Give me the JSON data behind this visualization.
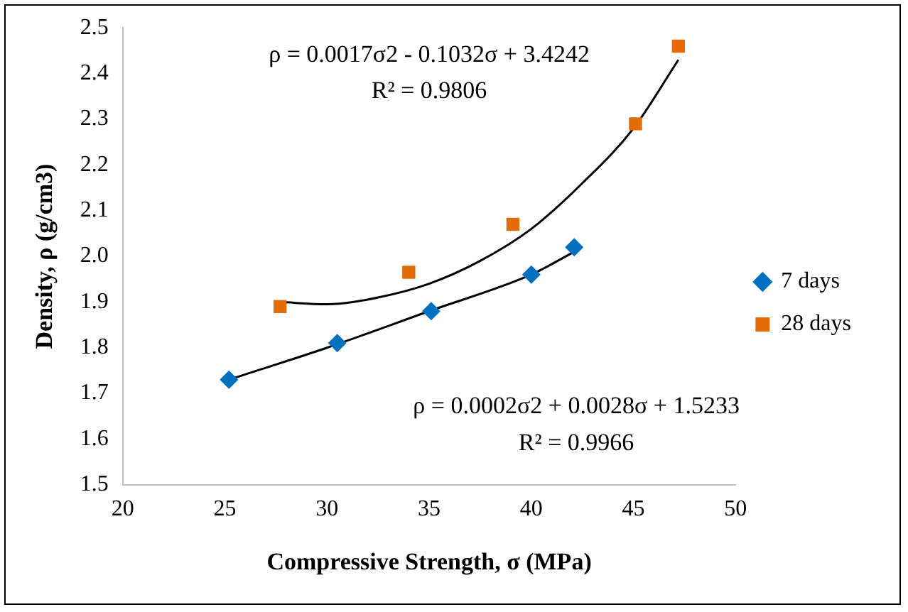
{
  "chart_data": {
    "type": "scatter",
    "xlabel": "Compressive Strength, σ (MPa)",
    "ylabel": "Density, ρ (g/cm3)",
    "xlim": [
      20,
      50
    ],
    "xticks": [
      20,
      25,
      30,
      35,
      40,
      45,
      50
    ],
    "ylim": [
      1.5,
      2.5
    ],
    "yticks": [
      1.5,
      1.6,
      1.7,
      1.8,
      1.9,
      {
        "value": 2,
        "label": "2.0"
      },
      2.1,
      2.2,
      2.3,
      2.4,
      2.5
    ],
    "grid": false,
    "legend": "right",
    "series": [
      {
        "name": "7 days",
        "marker": "diamond",
        "color": "#0070c0",
        "x": [
          25.2,
          30.5,
          35.1,
          40.0,
          42.1
        ],
        "values": [
          1.73,
          1.81,
          1.88,
          1.96,
          2.02
        ]
      },
      {
        "name": "28 days",
        "marker": "square",
        "color": "#e36c09",
        "x": [
          27.7,
          34.0,
          39.1,
          45.1,
          47.2
        ],
        "values": [
          1.89,
          1.965,
          2.07,
          2.29,
          2.46
        ]
      },
      {
        "type": "line",
        "marker": "none",
        "color": "#000000",
        "x": [
          25.2,
          30,
          35,
          40,
          42.1
        ],
        "values": [
          1.73,
          1.8,
          1.88,
          1.96,
          2.01
        ]
      },
      {
        "type": "line",
        "marker": "none",
        "color": "#000000",
        "x": [
          27.7,
          30,
          32.5,
          35,
          37.5,
          40,
          42.5,
          45,
          47.2
        ],
        "values": [
          1.9,
          1.895,
          1.91,
          1.94,
          1.99,
          2.06,
          2.16,
          2.28,
          2.43
        ]
      }
    ],
    "annotations": [
      "ρ = 0.0017σ2 - 0.1032σ + 3.4242",
      "R² = 0.9806",
      "ρ = 0.0002σ2 + 0.0028σ + 1.5233",
      "R² = 0.9966"
    ]
  }
}
